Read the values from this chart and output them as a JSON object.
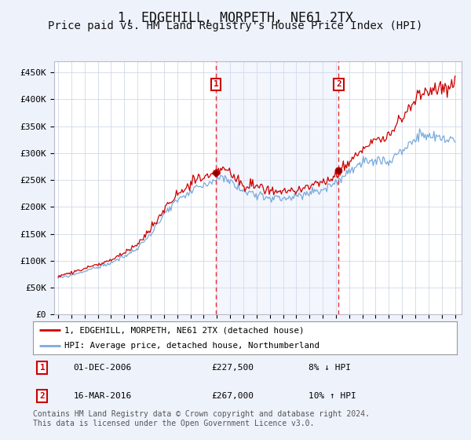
{
  "title": "1, EDGEHILL, MORPETH, NE61 2TX",
  "subtitle": "Price paid vs. HM Land Registry's House Price Index (HPI)",
  "title_fontsize": 12,
  "subtitle_fontsize": 10,
  "ylabel_ticks": [
    "£0",
    "£50K",
    "£100K",
    "£150K",
    "£200K",
    "£250K",
    "£300K",
    "£350K",
    "£400K",
    "£450K"
  ],
  "ytick_values": [
    0,
    50000,
    100000,
    150000,
    200000,
    250000,
    300000,
    350000,
    400000,
    450000
  ],
  "ylim": [
    0,
    470000
  ],
  "xlim_start": 1994.7,
  "xlim_end": 2025.5,
  "xtick_years": [
    1995,
    1996,
    1997,
    1998,
    1999,
    2000,
    2001,
    2002,
    2003,
    2004,
    2005,
    2006,
    2007,
    2008,
    2009,
    2010,
    2011,
    2012,
    2013,
    2014,
    2015,
    2016,
    2017,
    2018,
    2019,
    2020,
    2021,
    2022,
    2023,
    2024,
    2025
  ],
  "bg_color": "#eef2fb",
  "plot_bg_color": "#ffffff",
  "grid_color": "#d0d8e8",
  "red_line_color": "#cc0000",
  "blue_line_color": "#7aaadd",
  "sale1_x": 2006.92,
  "sale1_y": 227500,
  "sale1_label": "1",
  "sale1_date": "01-DEC-2006",
  "sale1_price": "£227,500",
  "sale1_hpi": "8% ↓ HPI",
  "sale2_x": 2016.21,
  "sale2_y": 267000,
  "sale2_label": "2",
  "sale2_date": "16-MAR-2016",
  "sale2_price": "£267,000",
  "sale2_hpi": "10% ↑ HPI",
  "vline_color": "#ee3333",
  "vline_shade_color": "#d8e4f8",
  "marker_box_color": "#cc0000",
  "legend_line1": "1, EDGEHILL, MORPETH, NE61 2TX (detached house)",
  "legend_line2": "HPI: Average price, detached house, Northumberland",
  "footer": "Contains HM Land Registry data © Crown copyright and database right 2024.\nThis data is licensed under the Open Government Licence v3.0.",
  "footer_fontsize": 7.0
}
